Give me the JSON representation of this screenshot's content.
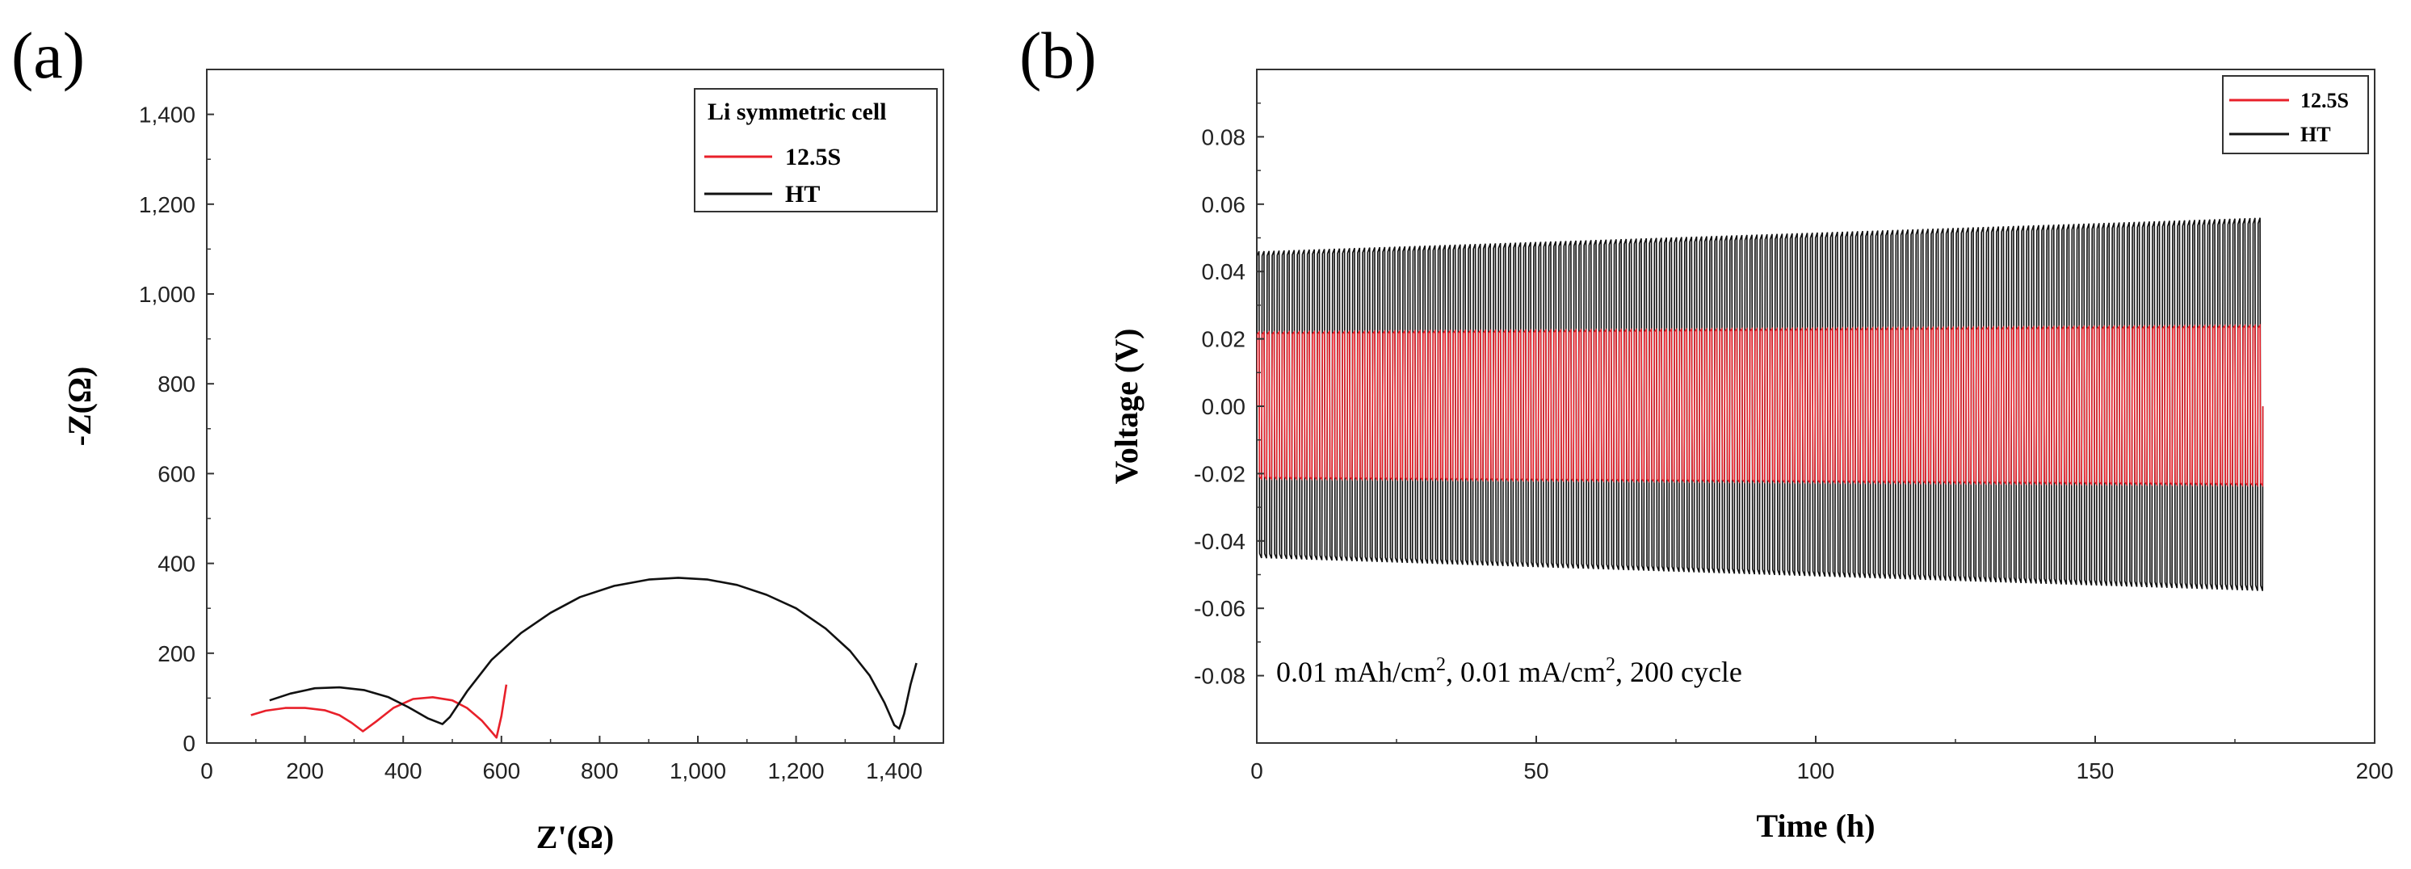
{
  "chart_data": [
    {
      "panel_label": "(a)",
      "type": "line",
      "xlabel": "Z'(Ω)",
      "ylabel": "-Z(Ω)",
      "xlim": [
        0,
        1500
      ],
      "ylim": [
        0,
        1500
      ],
      "x_ticks": [
        0,
        200,
        400,
        600,
        800,
        1000,
        1200,
        1400
      ],
      "x_tick_labels": [
        "0",
        "200",
        "400",
        "600",
        "800",
        "1,000",
        "1,200",
        "1,400"
      ],
      "y_ticks": [
        0,
        200,
        400,
        600,
        800,
        1000,
        1200,
        1400
      ],
      "y_tick_labels": [
        "0",
        "200",
        "400",
        "600",
        "800",
        "1,000",
        "1,200",
        "1,400"
      ],
      "legend_title": "Li symmetric cell",
      "legend_position": "top-right",
      "series": [
        {
          "name": "12.5S",
          "color": "#e8202a",
          "x": [
            90,
            120,
            160,
            200,
            240,
            270,
            295,
            318,
            345,
            380,
            420,
            460,
            500,
            530,
            560,
            580,
            590,
            600,
            610
          ],
          "y": [
            62,
            72,
            78,
            78,
            73,
            62,
            45,
            26,
            48,
            78,
            98,
            102,
            95,
            78,
            50,
            25,
            12,
            60,
            130
          ]
        },
        {
          "name": "HT",
          "color": "#111111",
          "x": [
            128,
            170,
            220,
            270,
            320,
            370,
            410,
            450,
            480,
            495,
            530,
            580,
            640,
            700,
            760,
            830,
            900,
            960,
            1020,
            1080,
            1140,
            1200,
            1260,
            1310,
            1350,
            1380,
            1400,
            1410,
            1420,
            1433,
            1445
          ],
          "y": [
            95,
            110,
            122,
            124,
            118,
            102,
            80,
            55,
            42,
            58,
            115,
            185,
            245,
            290,
            325,
            350,
            364,
            368,
            364,
            352,
            330,
            300,
            255,
            205,
            150,
            90,
            40,
            32,
            65,
            130,
            178
          ]
        }
      ]
    },
    {
      "panel_label": "(b)",
      "type": "line",
      "xlabel": "Time (h)",
      "ylabel": "Voltage (V)",
      "xlim": [
        0,
        200
      ],
      "ylim": [
        -0.1,
        0.1
      ],
      "x_ticks": [
        0,
        50,
        100,
        150,
        200
      ],
      "x_tick_labels": [
        "0",
        "50",
        "100",
        "150",
        "200"
      ],
      "y_ticks": [
        -0.08,
        -0.06,
        -0.04,
        -0.02,
        0.0,
        0.02,
        0.04,
        0.06,
        0.08
      ],
      "y_tick_labels": [
        "-0.08",
        "-0.06",
        "-0.04",
        "-0.02",
        "0.00",
        "0.02",
        "0.04",
        "0.06",
        "0.08"
      ],
      "legend_position": "top-right",
      "cycles": 200,
      "time_end_h": 180,
      "series": [
        {
          "name": "HT",
          "color": "#111111",
          "amplitude_start_V": 0.046,
          "amplitude_end_V": 0.056
        },
        {
          "name": "12.5S",
          "color": "#e8202a",
          "amplitude_start_V": 0.022,
          "amplitude_end_V": 0.024
        }
      ],
      "annotation": {
        "part1": "0.01 mAh/cm",
        "sup1": "2",
        "part2": ", 0.01 mA/cm",
        "sup2": "2",
        "part3": ", 200 cycle"
      }
    }
  ]
}
